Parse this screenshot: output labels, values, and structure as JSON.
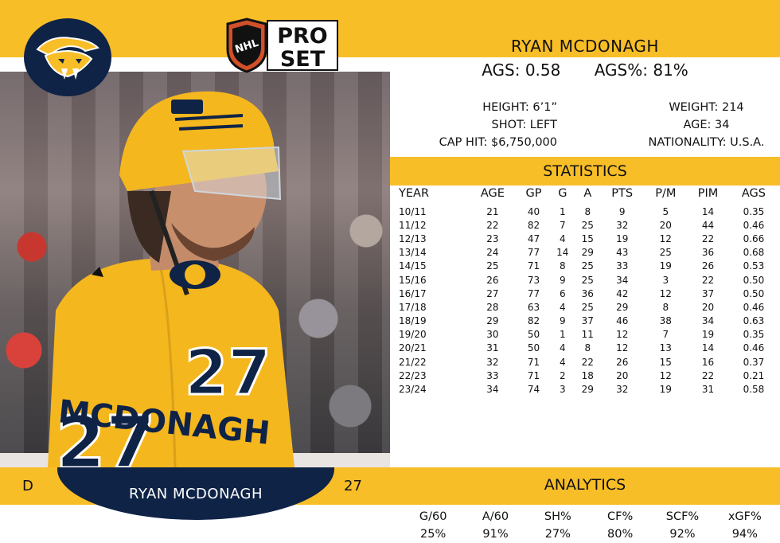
{
  "card": {
    "brand": "PRO SET",
    "brand_line1": "PRO",
    "brand_line2": "SET",
    "league_badge": "NHL",
    "team_logo_icon": "predators-sabertooth-icon",
    "colors": {
      "gold": "#F8BE28",
      "navy": "#0f2347"
    }
  },
  "player": {
    "name": "RYAN MCDONAGH",
    "position": "D",
    "number": "27",
    "jersey_name": "MCDONAGH"
  },
  "summary": {
    "ags": "AGS: 0.58",
    "ags_pct": "AGS%: 81%"
  },
  "bio": {
    "height": "HEIGHT: 6’1”",
    "weight": "WEIGHT: 214",
    "shot": "SHOT: LEFT",
    "age": "AGE: 34",
    "cap_hit": "CAP HIT: $6,750,000",
    "nationality": "NATIONALITY: U.S.A."
  },
  "statistics": {
    "title": "STATISTICS",
    "headers": [
      "YEAR",
      "AGE",
      "GP",
      "G",
      "A",
      "PTS",
      "P/M",
      "PIM",
      "AGS"
    ],
    "rows": [
      [
        "10/11",
        "21",
        "40",
        "1",
        "8",
        "9",
        "5",
        "14",
        "0.35"
      ],
      [
        "11/12",
        "22",
        "82",
        "7",
        "25",
        "32",
        "20",
        "44",
        "0.46"
      ],
      [
        "12/13",
        "23",
        "47",
        "4",
        "15",
        "19",
        "12",
        "22",
        "0.66"
      ],
      [
        "13/14",
        "24",
        "77",
        "14",
        "29",
        "43",
        "25",
        "36",
        "0.68"
      ],
      [
        "14/15",
        "25",
        "71",
        "8",
        "25",
        "33",
        "19",
        "26",
        "0.53"
      ],
      [
        "15/16",
        "26",
        "73",
        "9",
        "25",
        "34",
        "3",
        "22",
        "0.50"
      ],
      [
        "16/17",
        "27",
        "77",
        "6",
        "36",
        "42",
        "12",
        "37",
        "0.50"
      ],
      [
        "17/18",
        "28",
        "63",
        "4",
        "25",
        "29",
        "8",
        "20",
        "0.46"
      ],
      [
        "18/19",
        "29",
        "82",
        "9",
        "37",
        "46",
        "38",
        "34",
        "0.63"
      ],
      [
        "19/20",
        "30",
        "50",
        "1",
        "11",
        "12",
        "7",
        "19",
        "0.35"
      ],
      [
        "20/21",
        "31",
        "50",
        "4",
        "8",
        "12",
        "13",
        "14",
        "0.46"
      ],
      [
        "21/22",
        "32",
        "71",
        "4",
        "22",
        "26",
        "15",
        "16",
        "0.37"
      ],
      [
        "22/23",
        "33",
        "71",
        "2",
        "18",
        "20",
        "12",
        "22",
        "0.21"
      ],
      [
        "23/24",
        "34",
        "74",
        "3",
        "29",
        "32",
        "19",
        "31",
        "0.58"
      ]
    ]
  },
  "analytics": {
    "title": "ANALYTICS",
    "items": [
      {
        "label": "G/60",
        "value": "25%"
      },
      {
        "label": "A/60",
        "value": "91%"
      },
      {
        "label": "SH%",
        "value": "27%"
      },
      {
        "label": "CF%",
        "value": "80%"
      },
      {
        "label": "SCF%",
        "value": "92%"
      },
      {
        "label": "xGF%",
        "value": "94%"
      }
    ]
  }
}
